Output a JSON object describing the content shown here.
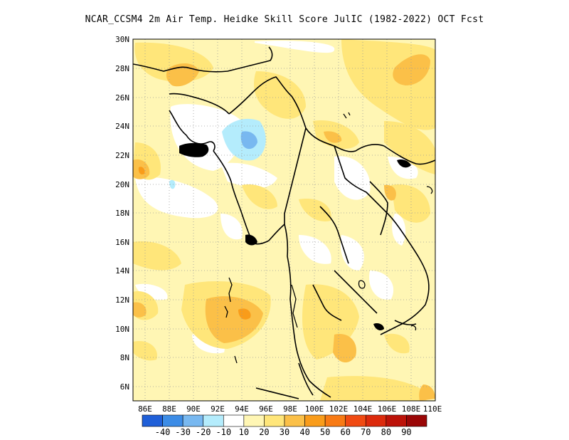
{
  "title": "NCAR_CCSM4  2m Air Temp. Heidke Skill Score JulIC (1982-2022) OCT Fcst",
  "map": {
    "lat_labels": [
      "30N",
      "28N",
      "26N",
      "24N",
      "22N",
      "20N",
      "18N",
      "16N",
      "14N",
      "12N",
      "10N",
      "8N",
      "6N"
    ],
    "lon_labels": [
      "86E",
      "88E",
      "90E",
      "92E",
      "94E",
      "96E",
      "98E",
      "100E",
      "102E",
      "104E",
      "106E",
      "108E",
      "110E"
    ],
    "lat_range": [
      5,
      30
    ],
    "lon_range": [
      85,
      110
    ],
    "grid": "dotted",
    "land_color": "#ffffff",
    "coastline_color": "#000000"
  },
  "colorbar": {
    "colors": [
      "#1f5fd8",
      "#3c8ce6",
      "#78b8f0",
      "#b4ecfc",
      "#ffffff",
      "#fff6b4",
      "#ffe67a",
      "#fbc048",
      "#f99c1a",
      "#f87a14",
      "#f04a12",
      "#dc2a0c",
      "#bc1208",
      "#9a0606"
    ],
    "labels": [
      "-40",
      "-30",
      "-20",
      "-10",
      "10",
      "20",
      "30",
      "40",
      "50",
      "60",
      "70",
      "80",
      "90"
    ]
  },
  "chart_data": {
    "type": "heatmap",
    "title": "NCAR_CCSM4  2m Air Temp. Heidke Skill Score JulIC (1982-2022) OCT Fcst",
    "xlabel": "",
    "ylabel": "",
    "x_range": [
      85,
      110
    ],
    "y_range": [
      5,
      30
    ],
    "levels": [
      -40,
      -30,
      -20,
      -10,
      10,
      20,
      30,
      40,
      50,
      60,
      70,
      80,
      90
    ],
    "regions": [
      {
        "name": "cool",
        "level": -10,
        "lon": [
          93.5,
          95.5
        ],
        "lat": [
          21.8,
          24.2
        ]
      },
      {
        "name": "cool",
        "level": -20,
        "lon": [
          94.4,
          95.5
        ],
        "lat": [
          22.6,
          23.6
        ]
      },
      {
        "name": "cool",
        "level": -10,
        "lon": [
          87.5,
          88.3
        ],
        "lat": [
          19.6,
          20.2
        ]
      },
      {
        "name": "warm",
        "level": 30,
        "lon": [
          101.7,
          102.6
        ],
        "lat": [
          23.4,
          24.0
        ]
      },
      {
        "name": "warm",
        "level": 30,
        "lon": [
          104.8,
          109.4
        ],
        "lat": [
          26.4,
          29.3
        ]
      },
      {
        "name": "warm",
        "level": 30,
        "lon": [
          88.5,
          90.5
        ],
        "lat": [
          26.5,
          28.4
        ]
      },
      {
        "name": "warm",
        "level": 30,
        "lon": [
          91.5,
          96.5
        ],
        "lat": [
          9.0,
          11.6
        ]
      },
      {
        "name": "warm",
        "level": 40,
        "lon": [
          93.8,
          95.0
        ],
        "lat": [
          9.8,
          10.5
        ]
      },
      {
        "name": "warm",
        "level": 30,
        "lon": [
          100.8,
          103.0
        ],
        "lat": [
          7.8,
          9.6
        ]
      },
      {
        "name": "warm",
        "level": 30,
        "lon": [
          85.0,
          86.3
        ],
        "lat": [
          19.2,
          21.2
        ]
      },
      {
        "name": "warm",
        "level": 30,
        "lon": [
          105.6,
          108.8
        ],
        "lat": [
          16.0,
          19.6
        ]
      },
      {
        "name": "warm",
        "level": 30,
        "lon": [
          85.5,
          87.0
        ],
        "lat": [
          8.8,
          11.0
        ]
      }
    ]
  }
}
